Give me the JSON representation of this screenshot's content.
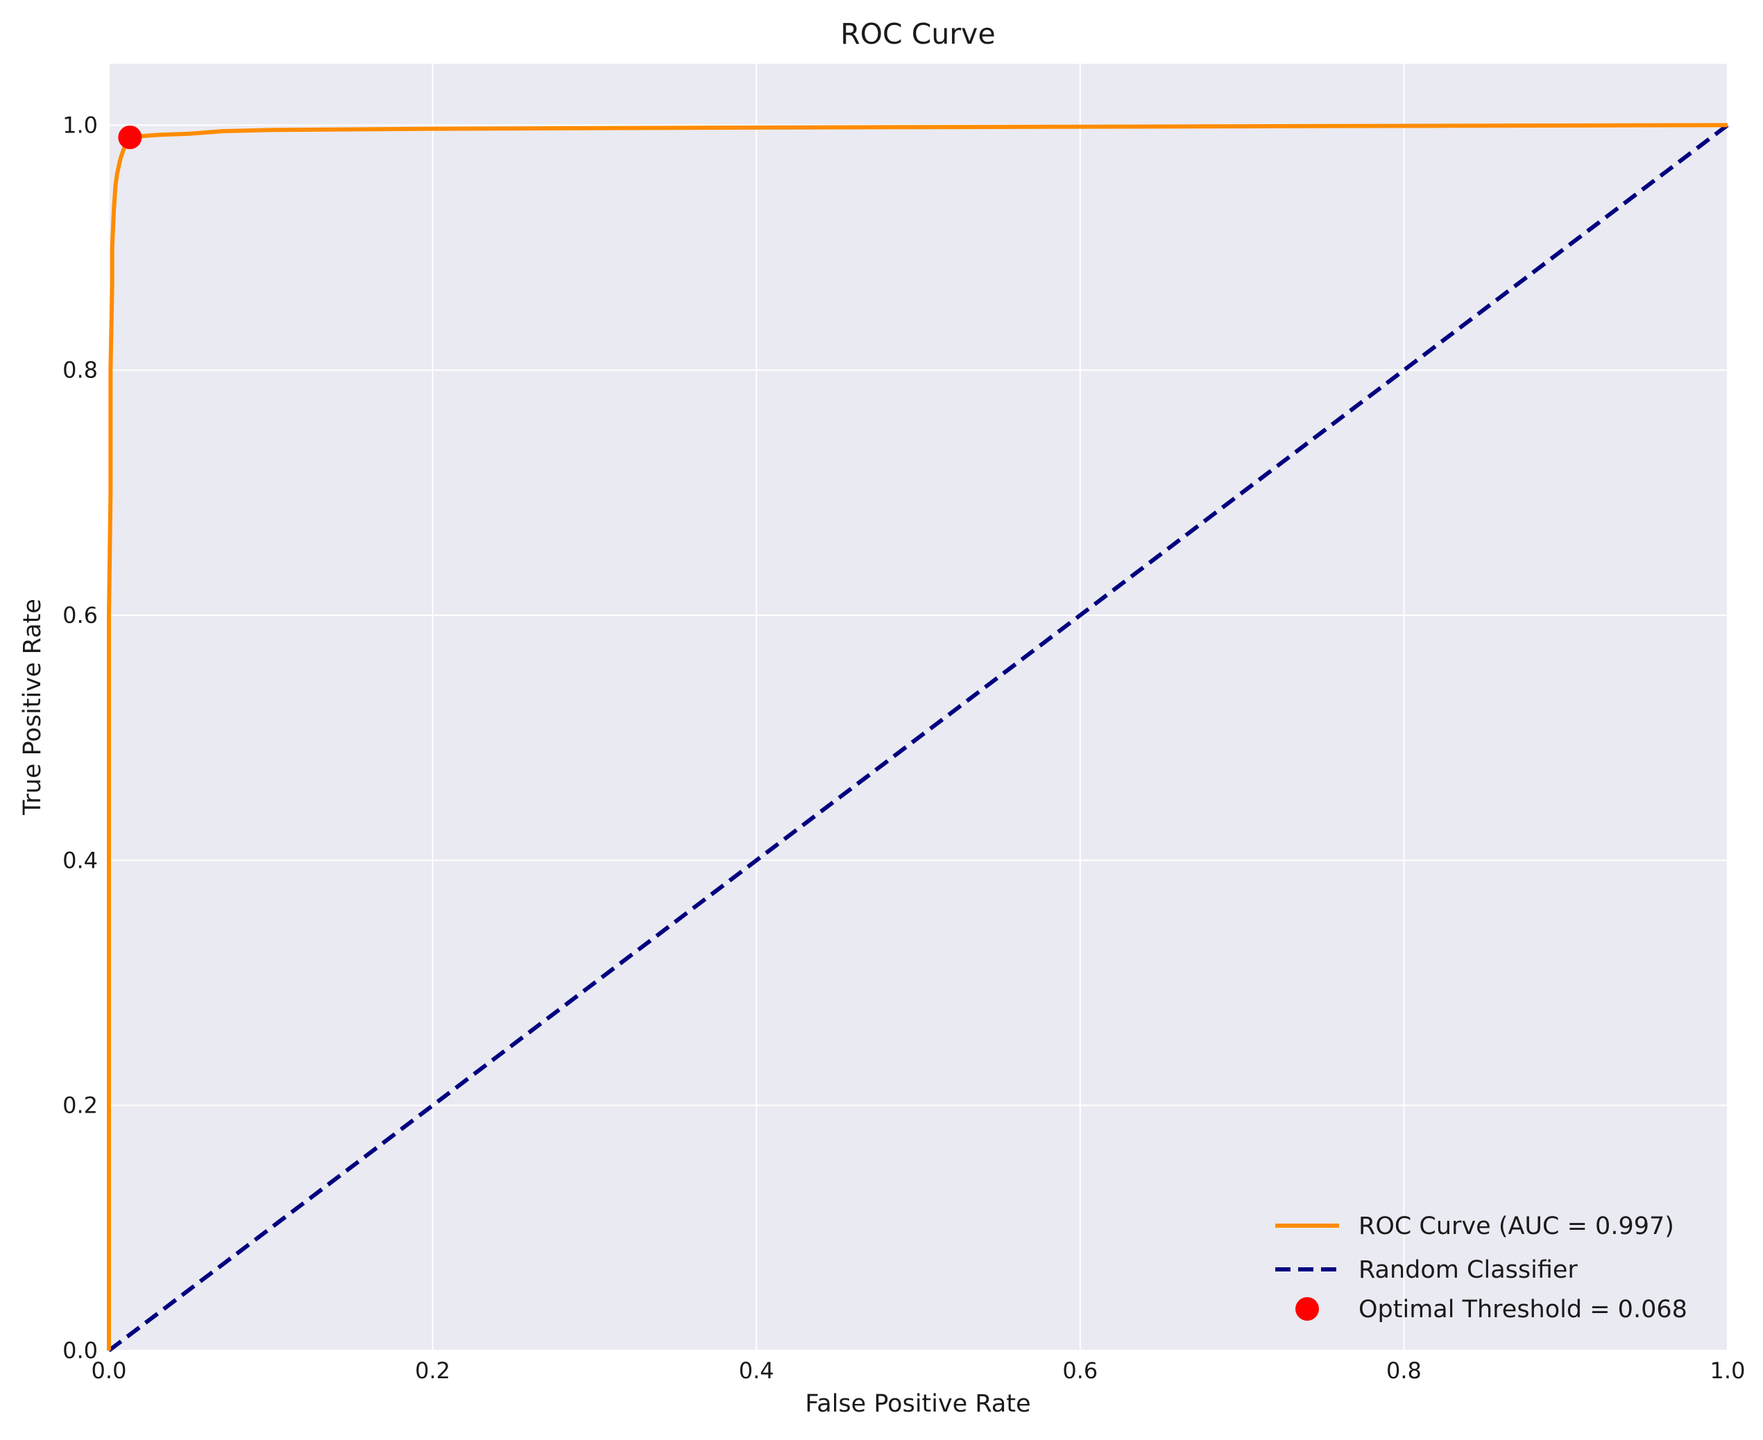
{
  "chart_data": {
    "type": "line",
    "title": "ROC Curve",
    "xlabel": "False Positive Rate",
    "ylabel": "True Positive Rate",
    "xlim": [
      0.0,
      1.0
    ],
    "ylim": [
      0.0,
      1.05
    ],
    "x_ticks": [
      "0.0",
      "0.2",
      "0.4",
      "0.6",
      "0.8",
      "1.0"
    ],
    "y_ticks": [
      "0.0",
      "0.2",
      "0.4",
      "0.6",
      "0.8",
      "1.0"
    ],
    "grid": true,
    "legend_placement": "lower-right",
    "series": [
      {
        "name": "ROC Curve (AUC = 0.997)",
        "style": "solid",
        "color": "#ff8c00",
        "x": [
          0.0,
          0.0,
          0.001,
          0.001,
          0.002,
          0.002,
          0.003,
          0.004,
          0.005,
          0.007,
          0.009,
          0.011,
          0.013,
          0.02,
          0.03,
          0.05,
          0.07,
          0.1,
          0.2,
          0.4,
          0.7,
          1.0
        ],
        "y": [
          0.0,
          0.6,
          0.7,
          0.8,
          0.87,
          0.9,
          0.93,
          0.95,
          0.96,
          0.972,
          0.98,
          0.986,
          0.99,
          0.991,
          0.992,
          0.993,
          0.995,
          0.996,
          0.997,
          0.998,
          0.999,
          1.0
        ]
      },
      {
        "name": "Random Classifier",
        "style": "dashed",
        "color": "#000080",
        "x": [
          0.0,
          1.0
        ],
        "y": [
          0.0,
          1.0
        ]
      },
      {
        "name": "Optimal Threshold = 0.068",
        "style": "marker",
        "color": "#ff0000",
        "x": [
          0.013
        ],
        "y": [
          0.99
        ]
      }
    ]
  },
  "colors": {
    "plot_background": "#eaeaf2",
    "grid": "#ffffff",
    "roc": "#ff8c00",
    "random": "#000080",
    "optimal": "#ff0000"
  }
}
